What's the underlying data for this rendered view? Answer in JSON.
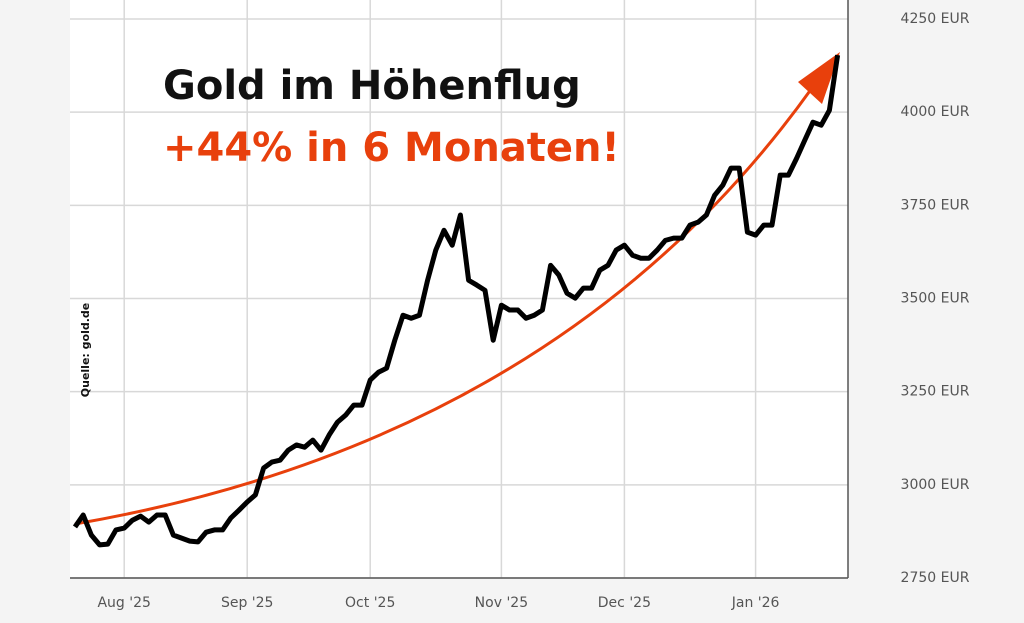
{
  "chart_data": {
    "type": "line",
    "title": "Gold im Höhenflug",
    "subtitle": "+44% in 6 Monaten!",
    "source": "Quelle: gold.de",
    "categories": [
      null,
      null,
      null,
      null,
      null,
      null,
      "Aug '25",
      null,
      null,
      null,
      null,
      null,
      null,
      null,
      null,
      null,
      null,
      null,
      null,
      null,
      null,
      "Sep '25",
      null,
      null,
      null,
      null,
      null,
      null,
      null,
      null,
      null,
      null,
      null,
      null,
      null,
      null,
      "Oct '25",
      null,
      null,
      null,
      null,
      null,
      null,
      null,
      null,
      null,
      null,
      null,
      null,
      null,
      null,
      null,
      "Nov '25",
      null,
      null,
      null,
      null,
      null,
      null,
      null,
      null,
      null,
      null,
      null,
      null,
      null,
      null,
      "Dec '25",
      null,
      null,
      null,
      null,
      null,
      null,
      null,
      null,
      null,
      null,
      null,
      null,
      null,
      null,
      null,
      "Jan '26",
      null,
      null,
      null,
      null,
      null,
      null,
      null,
      null,
      null,
      null
    ],
    "series": [
      {
        "name": "Gold",
        "color": "#000000",
        "values": [
          2887,
          2919,
          2865,
          2839,
          2841,
          2879,
          2884,
          2905,
          2916,
          2900,
          2919,
          2919,
          2865,
          2857,
          2849,
          2847,
          2873,
          2879,
          2879,
          2911,
          2932,
          2954,
          2973,
          3045,
          3061,
          3066,
          3093,
          3107,
          3101,
          3120,
          3093,
          3134,
          3168,
          3187,
          3214,
          3214,
          3281,
          3302,
          3313,
          3388,
          3455,
          3447,
          3455,
          3549,
          3630,
          3683,
          3643,
          3724,
          3549,
          3536,
          3522,
          3388,
          3482,
          3469,
          3469,
          3447,
          3455,
          3469,
          3589,
          3563,
          3514,
          3501,
          3528,
          3528,
          3576,
          3589,
          3630,
          3643,
          3616,
          3608,
          3608,
          3630,
          3656,
          3662,
          3662,
          3697,
          3705,
          3724,
          3777,
          3804,
          3850,
          3850,
          3678,
          3670,
          3697,
          3697,
          3831,
          3831,
          3876,
          3925,
          3973,
          3965,
          4005,
          4153
        ]
      }
    ],
    "ylim": [
      2750,
      4250
    ],
    "yticks": [
      {
        "value": 2750,
        "label": "2750 EUR"
      },
      {
        "value": 3000,
        "label": "3000 EUR"
      },
      {
        "value": 3250,
        "label": "3250 EUR"
      },
      {
        "value": 3500,
        "label": "3500 EUR"
      },
      {
        "value": 3750,
        "label": "3750 EUR"
      },
      {
        "value": 4000,
        "label": "4000 EUR"
      },
      {
        "value": 4250,
        "label": "4250 EUR"
      }
    ],
    "grid": true
  }
}
